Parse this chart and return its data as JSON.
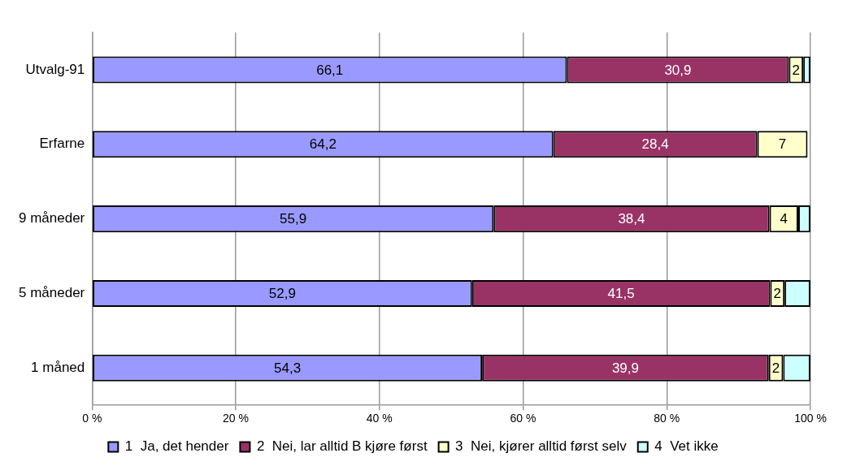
{
  "chart_data": {
    "type": "bar",
    "orientation": "horizontal",
    "stacked": true,
    "categories": [
      "Utvalg-91",
      "Erfarne",
      "9 måneder",
      "5 måneder",
      "1 måned"
    ],
    "series": [
      {
        "name": "1  Ja, det hender",
        "color": "#9999ff",
        "values": [
          66.1,
          64.2,
          55.9,
          52.9,
          54.3
        ],
        "value_labels": [
          "66,1",
          "64,2",
          "55,9",
          "52,9",
          "54,3"
        ]
      },
      {
        "name": "2  Nei, lar alltid B kjøre først",
        "color": "#993366",
        "values": [
          30.9,
          28.4,
          38.4,
          41.5,
          39.9
        ],
        "value_labels": [
          "30,9",
          "28,4",
          "38,4",
          "41,5",
          "39,9"
        ]
      },
      {
        "name": "3  Nei, kjører alltid først selv",
        "color": "#ffffcc",
        "values": [
          2,
          7,
          4,
          2,
          2
        ],
        "value_labels": [
          "2",
          "7",
          "4",
          "2",
          "2"
        ]
      },
      {
        "name": "4  Vet ikke",
        "color": "#ccffff",
        "values": [
          1,
          null,
          1.7,
          3.6,
          3.8
        ]
      }
    ],
    "xlim": [
      0,
      100
    ],
    "xticks": [
      {
        "value": 0,
        "label": "0 %"
      },
      {
        "value": 20,
        "label": "20 %"
      },
      {
        "value": 40,
        "label": "40 %"
      },
      {
        "value": 60,
        "label": "60 %"
      },
      {
        "value": 80,
        "label": "80 %"
      },
      {
        "value": 100,
        "label": "100 %"
      }
    ],
    "grid": "x",
    "legend": "bottom"
  }
}
